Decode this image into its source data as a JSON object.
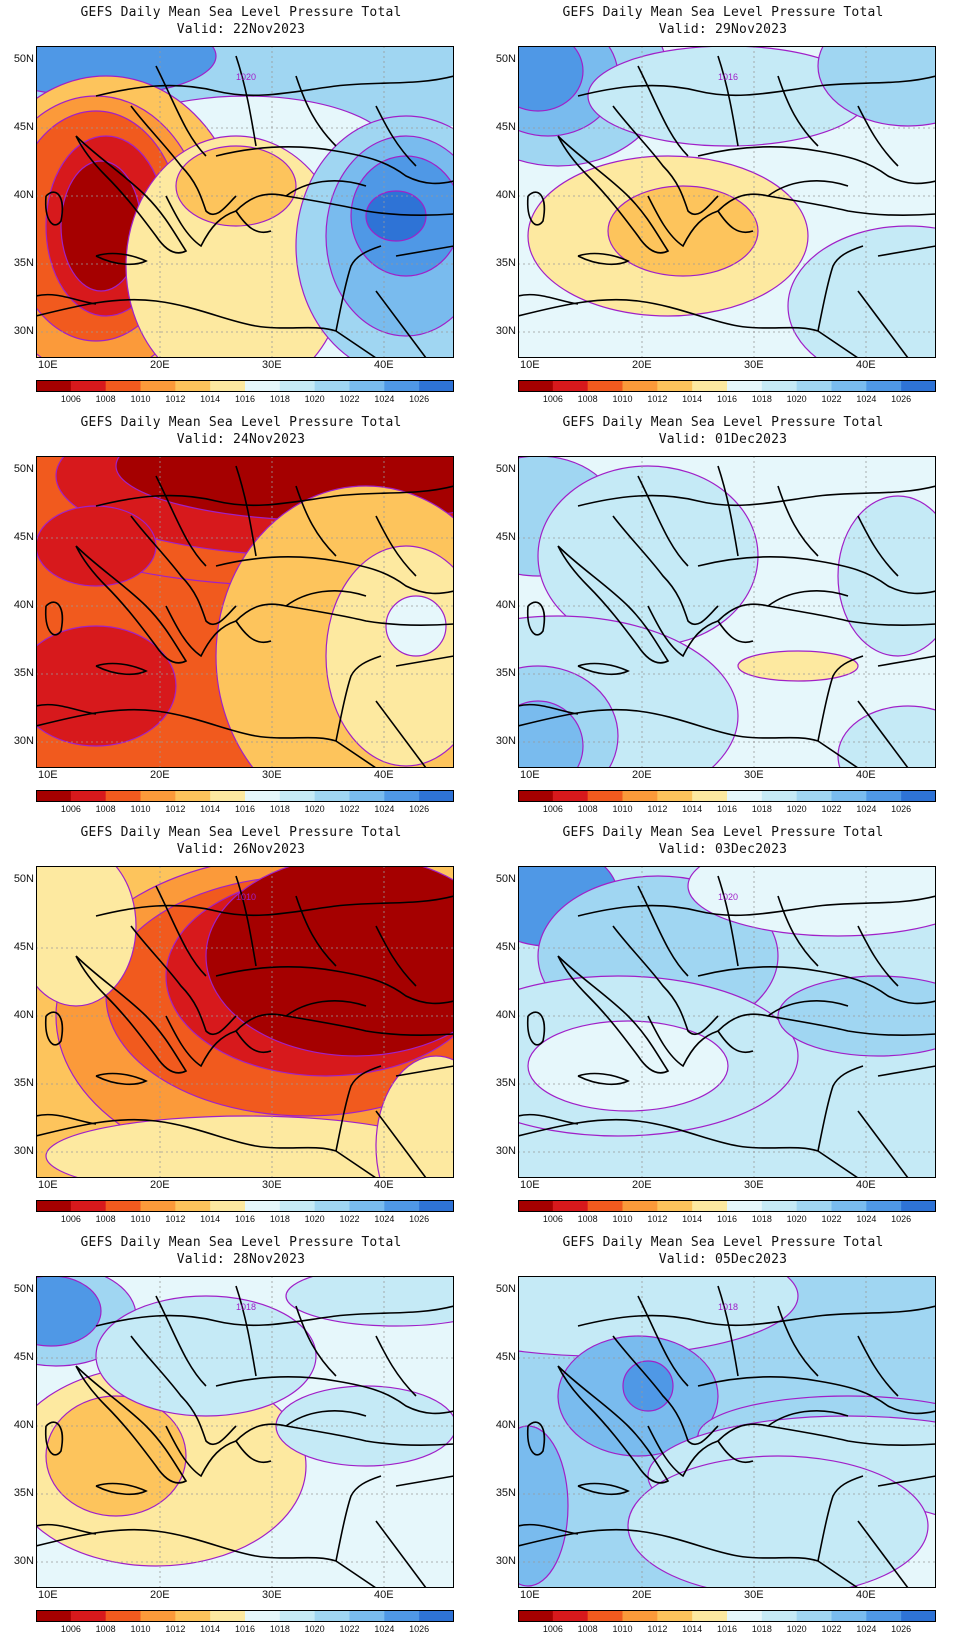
{
  "colorbar": {
    "levels": [
      "1006",
      "1008",
      "1010",
      "1012",
      "1014",
      "1016",
      "1018",
      "1020",
      "1022",
      "1024",
      "1026"
    ],
    "colors": [
      "#a50000",
      "#d7191c",
      "#f15a1e",
      "#fb9a3a",
      "#fdc45c",
      "#fde9a0",
      "#e6f7fb",
      "#c5eaf6",
      "#a0d6f2",
      "#79bbee",
      "#4f98e6",
      "#2e73d6"
    ]
  },
  "axes": {
    "lat_labels": [
      "50N",
      "45N",
      "40N",
      "35N",
      "30N"
    ],
    "lon_labels": [
      "10E",
      "20E",
      "30E",
      "40E"
    ]
  },
  "panels": [
    {
      "line1": "GEFS Daily Mean Sea Level Pressure Total",
      "line2": "Valid: 22Nov2023",
      "contour_label": "1020",
      "scheme": "p22"
    },
    {
      "line1": "GEFS Daily Mean Sea Level Pressure Total",
      "line2": "Valid: 29Nov2023",
      "contour_label": "1016",
      "scheme": "p29"
    },
    {
      "line1": "GEFS Daily Mean Sea Level Pressure Total",
      "line2": "Valid: 24Nov2023",
      "contour_label": "",
      "scheme": "p24"
    },
    {
      "line1": "GEFS Daily Mean Sea Level Pressure Total",
      "line2": "Valid: 01Dec2023",
      "contour_label": "",
      "scheme": "p01"
    },
    {
      "line1": "GEFS Daily Mean Sea Level Pressure Total",
      "line2": "Valid: 26Nov2023",
      "contour_label": "1010",
      "scheme": "p26"
    },
    {
      "line1": "GEFS Daily Mean Sea Level Pressure Total",
      "line2": "Valid: 03Dec2023",
      "contour_label": "1020",
      "scheme": "p03"
    },
    {
      "line1": "GEFS Daily Mean Sea Level Pressure Total",
      "line2": "Valid: 28Nov2023",
      "contour_label": "1018",
      "scheme": "p28"
    },
    {
      "line1": "GEFS Daily Mean Sea Level Pressure Total",
      "line2": "Valid: 05Dec2023",
      "contour_label": "1018",
      "scheme": "p05"
    }
  ]
}
